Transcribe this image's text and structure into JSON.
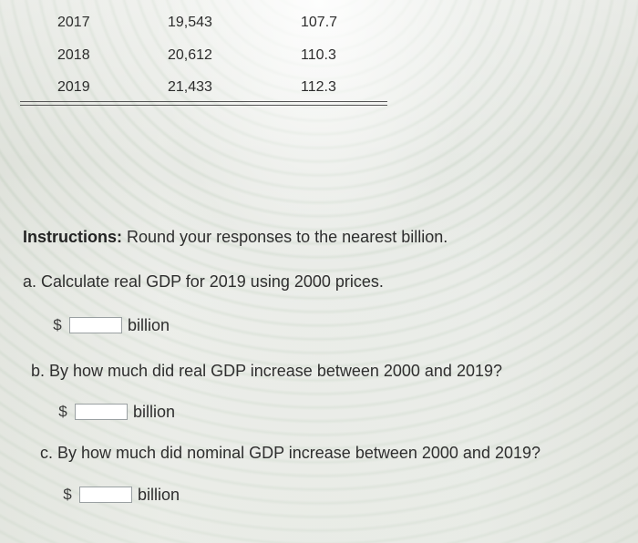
{
  "table": {
    "rows": [
      {
        "year": "2017",
        "nominal_gdp": "19,543",
        "price_index": "107.7"
      },
      {
        "year": "2018",
        "nominal_gdp": "20,612",
        "price_index": "110.3"
      },
      {
        "year": "2019",
        "nominal_gdp": "21,433",
        "price_index": "112.3"
      }
    ]
  },
  "instructions": {
    "label": "Instructions:",
    "text": " Round your responses to the nearest billion."
  },
  "questions": [
    {
      "prompt": "a. Calculate real GDP for 2019 using 2000 prices.",
      "currency": "$",
      "value": "",
      "unit": "billion"
    },
    {
      "prompt": "b. By how much did real GDP increase between 2000 and 2019?",
      "currency": "$",
      "value": "",
      "unit": "billion"
    },
    {
      "prompt": "c. By how much did nominal GDP increase between 2000 and 2019?",
      "currency": "$",
      "value": "",
      "unit": "billion"
    }
  ]
}
